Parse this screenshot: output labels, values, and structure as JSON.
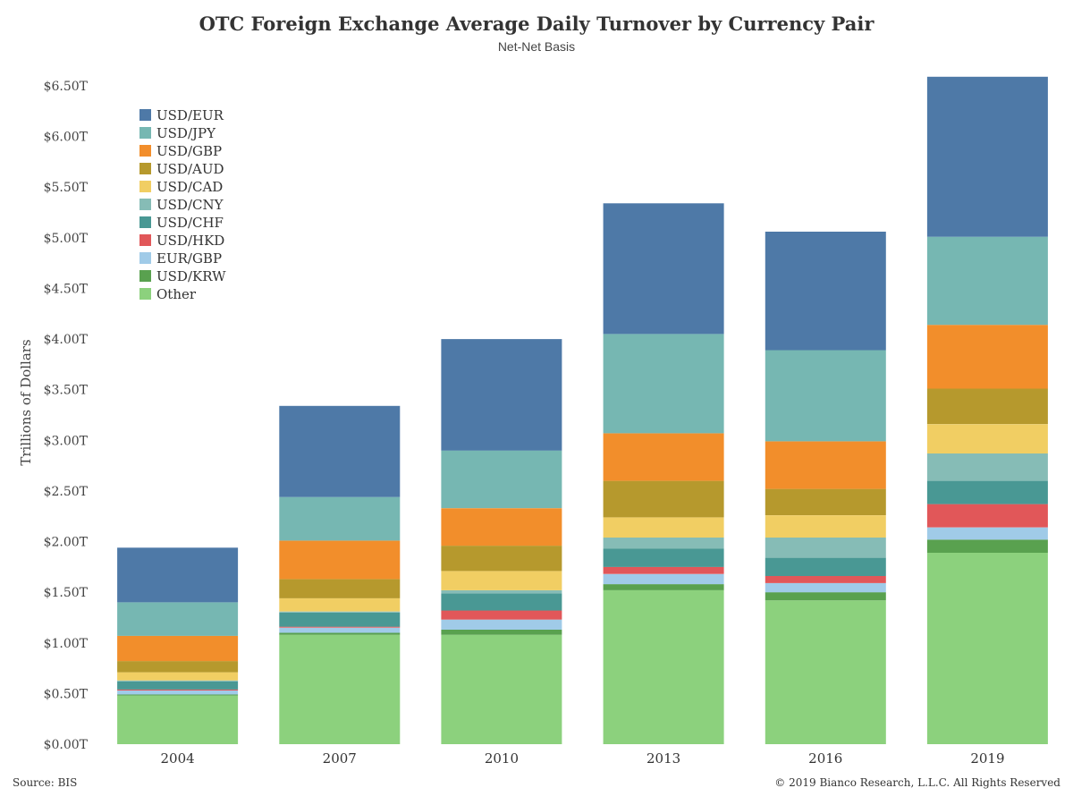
{
  "chart_data": {
    "type": "bar",
    "stacked": true,
    "title": "OTC Foreign Exchange Average Daily Turnover by Currency Pair",
    "subtitle": "Net-Net Basis",
    "ylabel": "Trillions of Dollars",
    "xlabel": "",
    "ylim": [
      0,
      6.8
    ],
    "yticks": [
      0,
      0.5,
      1.0,
      1.5,
      2.0,
      2.5,
      3.0,
      3.5,
      4.0,
      4.5,
      5.0,
      5.5,
      6.0,
      6.5
    ],
    "ytick_labels": [
      "$0.00T",
      "$0.50T",
      "$1.00T",
      "$1.50T",
      "$2.00T",
      "$2.50T",
      "$3.00T",
      "$3.50T",
      "$4.00T",
      "$4.50T",
      "$5.00T",
      "$5.50T",
      "$6.00T",
      "$6.50T"
    ],
    "categories": [
      "2004",
      "2007",
      "2010",
      "2013",
      "2016",
      "2019"
    ],
    "legend_position": "top-left",
    "grid": false,
    "series": [
      {
        "name": "Other",
        "color": "#8cd17d",
        "values": [
          0.48,
          1.08,
          1.08,
          1.52,
          1.42,
          1.89
        ]
      },
      {
        "name": "USD/KRW",
        "color": "#59a14f",
        "values": [
          0.01,
          0.02,
          0.05,
          0.06,
          0.08,
          0.13
        ]
      },
      {
        "name": "EUR/GBP",
        "color": "#a0cbe8",
        "values": [
          0.04,
          0.05,
          0.1,
          0.1,
          0.09,
          0.12
        ]
      },
      {
        "name": "USD/HKD",
        "color": "#e15759",
        "values": [
          0.01,
          0.01,
          0.09,
          0.07,
          0.07,
          0.23
        ]
      },
      {
        "name": "USD/CHF",
        "color": "#499894",
        "values": [
          0.08,
          0.14,
          0.17,
          0.18,
          0.18,
          0.23
        ]
      },
      {
        "name": "USD/CNY",
        "color": "#86bcb6",
        "values": [
          0.01,
          0.01,
          0.03,
          0.11,
          0.2,
          0.27
        ]
      },
      {
        "name": "USD/CAD",
        "color": "#f1ce63",
        "values": [
          0.08,
          0.13,
          0.19,
          0.2,
          0.22,
          0.29
        ]
      },
      {
        "name": "USD/AUD",
        "color": "#b6992d",
        "values": [
          0.11,
          0.19,
          0.25,
          0.36,
          0.26,
          0.35
        ]
      },
      {
        "name": "USD/GBP",
        "color": "#f28e2b",
        "values": [
          0.25,
          0.38,
          0.37,
          0.47,
          0.47,
          0.63
        ]
      },
      {
        "name": "USD/JPY",
        "color": "#76b7b2",
        "values": [
          0.33,
          0.43,
          0.57,
          0.98,
          0.9,
          0.87
        ]
      },
      {
        "name": "USD/EUR",
        "color": "#4e79a7",
        "values": [
          0.54,
          0.9,
          1.1,
          1.29,
          1.17,
          1.58
        ]
      }
    ],
    "legend_order": [
      "USD/EUR",
      "USD/JPY",
      "USD/GBP",
      "USD/AUD",
      "USD/CAD",
      "USD/CNY",
      "USD/CHF",
      "USD/HKD",
      "EUR/GBP",
      "USD/KRW",
      "Other"
    ]
  },
  "footer": {
    "source": "Source: BIS",
    "copyright": "© 2019 Bianco Research, L.L.C. All Rights Reserved"
  }
}
